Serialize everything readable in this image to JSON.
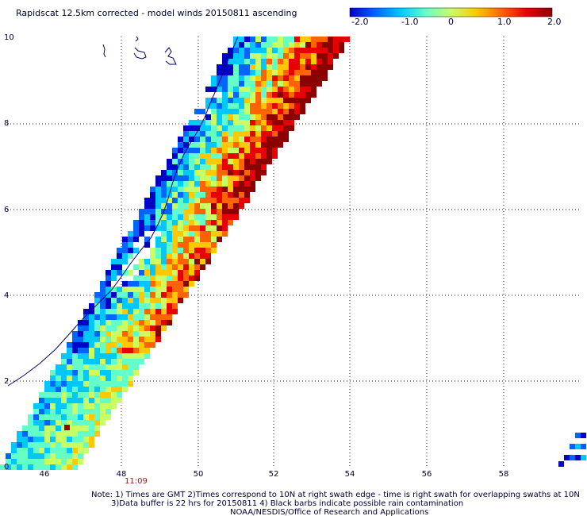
{
  "title": "Rapidscat 12.5km corrected - model winds 20150811 ascending",
  "colorbar": {
    "labels": [
      "-2.0",
      "-1.0",
      "0",
      "1.0",
      "2.0"
    ],
    "colors": [
      "#0000c8",
      "#0064ff",
      "#00c8ff",
      "#64ffc8",
      "#c8ff64",
      "#ffc800",
      "#ff6400",
      "#e60000",
      "#8b0000"
    ]
  },
  "axes": {
    "x_ticks": [
      "46",
      "48",
      "50",
      "52",
      "54",
      "56",
      "58"
    ],
    "y_ticks": [
      "0",
      "2",
      "4",
      "6",
      "8",
      "10"
    ],
    "grid": "dotted"
  },
  "time_label": "11:09",
  "notes": [
    "Note: 1) Times are GMT 2)Times correspond to 10N at right swath edge - time is right swath for overlapping swaths at 10N",
    "3)Data buffer is 22 hrs for 20150811 4) Black barbs indicate possible rain contamination",
    "NOAA/NESDIS/Office of Research and Applications"
  ],
  "map": {
    "lon_range": [
      45,
      60
    ],
    "lat_range": [
      0,
      10
    ],
    "field": "wind speed difference (corrected minus model)",
    "value_range": [
      -2.0,
      2.0
    ]
  }
}
